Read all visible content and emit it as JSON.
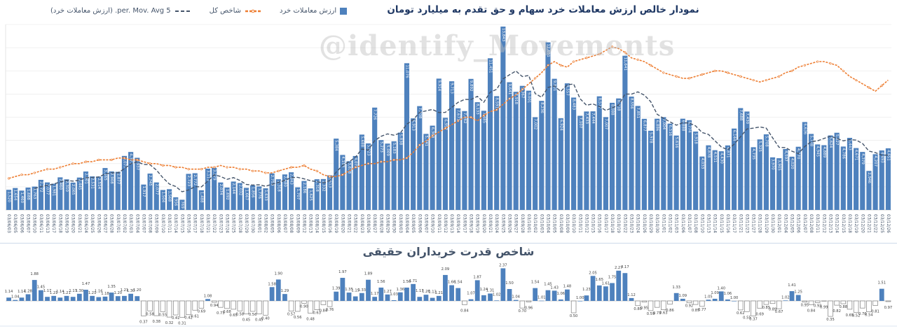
{
  "watermark": "@identify_Movements",
  "dates": [
    "03/06/03",
    "03/06/05",
    "03/06/06",
    "03/06/07",
    "03/06/10",
    "03/06/11",
    "03/06/13",
    "03/06/17",
    "03/06/18",
    "03/06/19",
    "03/06/20",
    "03/06/21",
    "03/06/24",
    "03/06/25",
    "03/06/26",
    "03/06/27",
    "03/06/28",
    "03/07/01",
    "03/07/02",
    "03/07/03",
    "03/07/04",
    "03/07/07",
    "03/07/08",
    "03/07/09",
    "03/07/10",
    "03/07/11",
    "03/07/14",
    "03/07/15",
    "03/07/16",
    "03/07/17",
    "03/07/18",
    "03/07/21",
    "03/07/22",
    "03/07/23",
    "03/07/24",
    "03/07/25",
    "03/07/28",
    "03/07/29",
    "03/07/30",
    "03/08/01",
    "03/08/02",
    "03/08/05",
    "03/08/06",
    "03/08/07",
    "03/08/08",
    "03/08/09",
    "03/08/12",
    "03/08/13",
    "03/08/14",
    "03/08/15",
    "03/08/16",
    "03/08/19",
    "03/08/20",
    "03/08/21",
    "03/08/22",
    "03/08/23",
    "03/08/26",
    "03/08/27",
    "03/08/28",
    "03/08/29",
    "03/08/30",
    "03/09/03",
    "03/09/04",
    "03/09/05",
    "03/09/06",
    "03/09/07",
    "03/09/10",
    "03/09/11",
    "03/09/12",
    "03/09/13",
    "03/09/14",
    "03/09/17",
    "03/09/18",
    "03/09/19",
    "03/09/20",
    "03/09/21",
    "03/09/24",
    "03/09/25",
    "03/09/26",
    "03/09/27",
    "03/09/28",
    "03/10/01",
    "03/10/02",
    "03/10/03",
    "03/10/04",
    "03/10/05",
    "03/10/08",
    "03/10/09",
    "03/10/10",
    "03/10/11",
    "03/10/12",
    "03/10/15",
    "03/10/16",
    "03/10/17",
    "03/10/18",
    "03/10/19",
    "03/10/22",
    "03/10/23",
    "03/10/24",
    "03/10/26",
    "03/10/29",
    "03/10/30",
    "03/11/01",
    "03/11/02",
    "03/11/03",
    "03/11/06",
    "03/11/07",
    "03/11/08",
    "03/11/10",
    "03/11/13",
    "03/11/14",
    "03/11/15",
    "03/11/16",
    "03/11/17",
    "03/11/21",
    "03/11/23",
    "03/11/27",
    "03/11/28",
    "03/11/29",
    "03/11/30",
    "03/12/01",
    "03/12/04",
    "03/12/05",
    "03/12/06",
    "03/12/07",
    "03/12/08",
    "03/12/11",
    "03/12/12",
    "03/12/13",
    "03/12/14",
    "03/12/15",
    "03/12/18",
    "03/12/19",
    "03/12/20",
    "03/12/21",
    "03/12/22",
    "03/12/25",
    "03/12/26"
  ],
  "chart_data": [
    {
      "type": "bar",
      "title": "نمودار خالص ارزش معاملات خرد سهام و حق تقدم به میلیارد تومان",
      "unit": "میلیارد تومان",
      "categories_ref": "dates",
      "ylim": [
        0,
        14000
      ],
      "grid": true,
      "grid_divisions": 8,
      "legend_position": "top-left",
      "series": [
        {
          "name": "ارزش معاملات خرد",
          "type": "bar",
          "color": "#4e81bd",
          "label_style": "rotated inside-end, white",
          "values": [
            1520,
            1654,
            1460,
            1688,
            1763,
            2272,
            2077,
            1981,
            2460,
            2310,
            2065,
            2445,
            2901,
            2531,
            2514,
            3165,
            2908,
            2877,
            4077,
            4377,
            3937,
            1917,
            2745,
            2077,
            1504,
            1568,
            956,
            769,
            2723,
            2772,
            1488,
            3115,
            3179,
            2074,
            1692,
            2144,
            2032,
            1667,
            1856,
            1776,
            1633,
            2759,
            2318,
            2680,
            2843,
            1707,
            2186,
            1625,
            2318,
            2332,
            2613,
            5384,
            4153,
            3678,
            4072,
            5688,
            5023,
            7726,
            5273,
            5009,
            5183,
            5838,
            11076,
            6913,
            7838,
            5741,
            6363,
            9914,
            6957,
            9713,
            7671,
            7462,
            9892,
            8133,
            7485,
            11451,
            8591,
            13843,
            9641,
            8918,
            9367,
            9001,
            7002,
            8236,
            12651,
            9901,
            6924,
            9557,
            8483,
            7107,
            7433,
            7444,
            8577,
            7007,
            8088,
            8418,
            11641,
            8556,
            7851,
            6877,
            5978,
            6886,
            7004,
            6516,
            5616,
            6888,
            6774,
            5918,
            4033,
            4878,
            4511,
            4430,
            4871,
            6144,
            7688,
            7430,
            4735,
            5325,
            5708,
            3970,
            3905,
            4597,
            4020,
            4770,
            6636,
            5738,
            4945,
            4889,
            5624,
            5827,
            4786,
            5443,
            4671,
            4379,
            2946,
            4207,
            4493,
            4651
          ]
        },
        {
          "name": "شاخص کل",
          "type": "dashed-line-with-markers",
          "color": "#ed7d31",
          "axis": "secondary (no visible scale)",
          "values_percent_of_plot_height_estimated": [
            17,
            18,
            19,
            19,
            20,
            21,
            22,
            22,
            23,
            24,
            25,
            25,
            26,
            26,
            27,
            27,
            27,
            28,
            28,
            27,
            27,
            26,
            25,
            25,
            24,
            24,
            23,
            23,
            22,
            22,
            22,
            23,
            23,
            24,
            23,
            23,
            22,
            22,
            21,
            21,
            20,
            20,
            21,
            22,
            23,
            23,
            24,
            22,
            21,
            19,
            18,
            18,
            19,
            21,
            23,
            24,
            25,
            25,
            26,
            26,
            27,
            27,
            28,
            31,
            35,
            37,
            40,
            42,
            44,
            46,
            48,
            50,
            50,
            48,
            51,
            53,
            54,
            57,
            60,
            62,
            65,
            68,
            71,
            74,
            78,
            80,
            78,
            77,
            80,
            81,
            82,
            83,
            84,
            86,
            88,
            87,
            85,
            82,
            81,
            80,
            78,
            76,
            74,
            73,
            72,
            71,
            71,
            72,
            73,
            74,
            75,
            75,
            74,
            73,
            72,
            71,
            70,
            69,
            70,
            71,
            72,
            74,
            75,
            77,
            78,
            79,
            80,
            80,
            79,
            78,
            75,
            72,
            70,
            68,
            66,
            64,
            67,
            70
          ]
        },
        {
          "name": "5 per. Mov. Avg. (ارزش معاملات خرد)",
          "type": "dashed-line",
          "color": "#44546a",
          "derived_from": "5-period moving average of series ارزش معاملات خرد"
        }
      ]
    },
    {
      "type": "bar",
      "title": "شاخص قدرت خریداران حقیقی",
      "categories_ref": "dates",
      "baseline": 1,
      "positive_style": {
        "fill": "#4e81bd"
      },
      "negative_style": {
        "fill": "#ffffff",
        "stroke": "#7f7f7f"
      },
      "label_decimals": 2,
      "values": [
        1.14,
        1.04,
        1.14,
        1.28,
        1.88,
        1.45,
        1.17,
        1.21,
        1.14,
        1.21,
        1.17,
        1.3,
        1.47,
        1.21,
        1.16,
        1.18,
        1.35,
        1.2,
        1.21,
        1.3,
        1.2,
        0.37,
        0.58,
        0.38,
        0.55,
        0.32,
        0.41,
        0.31,
        0.42,
        0.61,
        0.69,
        1.08,
        0.94,
        0.73,
        0.68,
        0.65,
        0.58,
        0.45,
        0.56,
        0.45,
        0.4,
        1.58,
        1.9,
        1.29,
        0.57,
        0.56,
        0.9,
        0.48,
        0.63,
        0.84,
        0.76,
        1.39,
        1.97,
        1.35,
        1.19,
        1.33,
        1.89,
        1.17,
        1.56,
        1.27,
        1.03,
        1.36,
        1.56,
        1.71,
        1.17,
        1.26,
        1.13,
        1.21,
        2.09,
        1.66,
        1.54,
        0.84,
        1.07,
        1.87,
        1.24,
        1.31,
        1.02,
        2.37,
        1.5,
        1.04,
        0.7,
        0.96,
        1.54,
        1.01,
        1.45,
        1.43,
        1.06,
        1.48,
        0.5,
        1.0,
        1.23,
        2.05,
        1.65,
        1.61,
        1.75,
        2.27,
        2.17,
        1.12,
        0.8,
        0.95,
        0.59,
        0.73,
        0.63,
        0.86,
        1.33,
        1.09,
        0.92,
        0.85,
        0.77,
        1.05,
        1.09,
        1.4,
        1.06,
        1.0,
        0.62,
        0.55,
        0.37,
        0.69,
        0.85,
        0.89,
        0.67,
        1.02,
        1.41,
        1.25,
        0.95,
        0.84,
        0.93,
        0.99,
        0.35,
        0.82,
        0.88,
        0.65,
        0.52,
        0.7,
        0.54,
        0.81,
        1.51,
        0.97
      ]
    }
  ],
  "colors": {
    "bar_blue": "#4e81bd",
    "index_orange": "#ed7d31",
    "moving_avg_navy": "#44546a",
    "gridline": "#ececec",
    "axis_line": "#c6c6c6",
    "date_label": "#44546a",
    "bottom_label": "#3f3f3f"
  }
}
